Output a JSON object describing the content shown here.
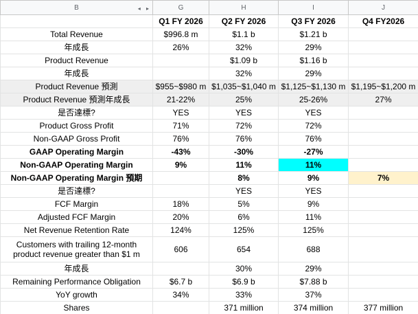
{
  "column_headers": [
    "B",
    "G",
    "H",
    "I",
    "J"
  ],
  "header_row": [
    "",
    "Q1 FY 2026",
    "Q2 FY 2026",
    "Q3 FY 2026",
    "Q4 FY2026"
  ],
  "rows": [
    {
      "label": "Total Revenue",
      "g": "$996.8 m",
      "h": "$1.1 b",
      "i": "$1.21 b",
      "j": ""
    },
    {
      "label": "年成長",
      "g": "26%",
      "h": "32%",
      "i": "29%",
      "j": ""
    },
    {
      "label": "Product Revenue",
      "g": "",
      "h": "$1.09 b",
      "i": "$1.16 b",
      "j": ""
    },
    {
      "label": "年成長",
      "g": "",
      "h": "32%",
      "i": "29%",
      "j": ""
    },
    {
      "label": "Product Revenue 預測",
      "g": "$955~$980 m",
      "h": "$1,035~$1,040 m",
      "i": "$1,125~$1,130 m",
      "j": "$1,195~$1,200 m"
    },
    {
      "label": "Product Revenue 預測年成長",
      "g": "21-22%",
      "h": "25%",
      "i": "25-26%",
      "j": "27%"
    },
    {
      "label": "是否達標?",
      "g": "YES",
      "h": "YES",
      "i": "YES",
      "j": ""
    },
    {
      "label": "Product Gross Profit",
      "g": "71%",
      "h": "72%",
      "i": "72%",
      "j": ""
    },
    {
      "label": "Non-GAAP Gross Profit",
      "g": "76%",
      "h": "76%",
      "i": "76%",
      "j": ""
    },
    {
      "label": "GAAP Operating Margin",
      "g": "-43%",
      "h": "-30%",
      "i": "-27%",
      "j": ""
    },
    {
      "label": "Non-GAAP Operating Margin",
      "g": "9%",
      "h": "11%",
      "i": "11%",
      "j": ""
    },
    {
      "label": "Non-GAAP Operating Margin 預期",
      "g": "",
      "h": "8%",
      "i": "9%",
      "j": "7%"
    },
    {
      "label": "是否達標?",
      "g": "",
      "h": "YES",
      "i": "YES",
      "j": ""
    },
    {
      "label": "FCF Margin",
      "g": "18%",
      "h": "5%",
      "i": "9%",
      "j": ""
    },
    {
      "label": "Adjusted FCF Margin",
      "g": "20%",
      "h": "6%",
      "i": "11%",
      "j": ""
    },
    {
      "label": "Net Revenue Retention Rate",
      "g": "124%",
      "h": "125%",
      "i": "125%",
      "j": ""
    },
    {
      "label": "Customers with trailing 12-month product revenue greater than $1 m",
      "g": "606",
      "h": "654",
      "i": "688",
      "j": ""
    },
    {
      "label": "年成長",
      "g": "",
      "h": "30%",
      "i": "29%",
      "j": ""
    },
    {
      "label": "Remaining Performance Obligation",
      "g": "$6.7 b",
      "h": "$6.9 b",
      "i": "$7.88 b",
      "j": ""
    },
    {
      "label": "YoY growth",
      "g": "34%",
      "h": "33%",
      "i": "37%",
      "j": ""
    },
    {
      "label": "Shares",
      "g": "",
      "h": "371 million",
      "i": "374 million",
      "j": "377 million"
    }
  ],
  "colors": {
    "highlight_cyan": "#00ffff",
    "highlight_peach": "#fff2cc",
    "shaded_row": "#efefef"
  },
  "icons": {
    "collapse_arrows": "◂ ▸"
  }
}
